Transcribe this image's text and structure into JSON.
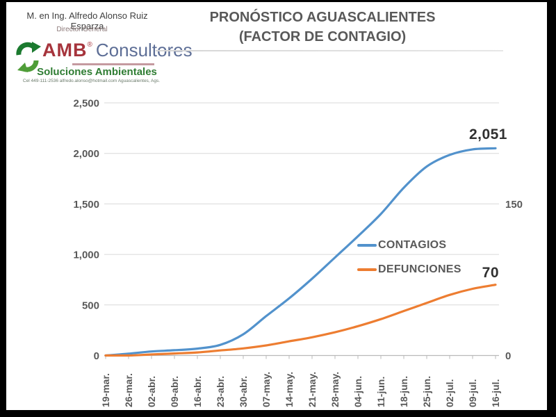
{
  "header": {
    "author_name": "M. en Ing. Alfredo Alonso Ruiz Esparza",
    "author_title": "Director General",
    "logo": {
      "brand": "AMB",
      "registered_mark": "®",
      "brand_suffix": "Consultores",
      "tagline": "Soluciones Ambientales",
      "contact": "Cel 449-111-2536    alfredo.alonso@hotmail.com    Aguascalientes, Ags.",
      "colors": {
        "brand": "#a6343c",
        "suffix": "#5d6e96",
        "tagline": "#2f7d33",
        "recycle_dark": "#1b7a2f",
        "recycle_light": "#4f9d38"
      }
    }
  },
  "title": {
    "line1": "PRONÓSTICO AGUASCALIENTES",
    "line2": "(FACTOR DE CONTAGIO)"
  },
  "chart_data": {
    "type": "line",
    "title": "PRONÓSTICO AGUASCALIENTES (FACTOR DE CONTAGIO)",
    "grid": true,
    "legend_position": "center-right",
    "categories": [
      "19-mar.",
      "26-mar.",
      "02-abr.",
      "09-abr.",
      "16-abr.",
      "23-abr.",
      "30-abr.",
      "07-may.",
      "14-may.",
      "21-may.",
      "28-may.",
      "04-jun.",
      "11-jun.",
      "18-jun.",
      "25-jun.",
      "02-jul.",
      "09-jul.",
      "16-jul."
    ],
    "series": [
      {
        "name": "CONTAGIOS",
        "axis": "left",
        "color": "#5292cc",
        "end_label": "2,051",
        "end_value": 2051,
        "values": [
          0,
          18,
          40,
          52,
          68,
          105,
          210,
          390,
          565,
          760,
          970,
          1180,
          1400,
          1660,
          1870,
          1985,
          2040,
          2051
        ]
      },
      {
        "name": "DEFUNCIONES",
        "axis": "right",
        "color": "#ed7d31",
        "end_label": "70",
        "end_value": 70,
        "values": [
          0,
          0,
          1,
          2,
          3,
          5,
          7,
          10,
          14,
          18,
          23,
          29,
          36,
          44,
          52,
          60,
          66,
          70
        ]
      }
    ],
    "left_axis": {
      "min": 0,
      "max": 2500,
      "ticks": [
        {
          "label": "0",
          "value": 0
        },
        {
          "label": "500",
          "value": 500
        },
        {
          "label": "1,000",
          "value": 1000
        },
        {
          "label": "1,500",
          "value": 1500
        },
        {
          "label": "2,000",
          "value": 2000
        },
        {
          "label": "2,500",
          "value": 2500
        }
      ]
    },
    "right_axis": {
      "min": 0,
      "max": 250,
      "visible_ticks": [
        {
          "label": "150",
          "value": 150
        },
        {
          "label": "0",
          "value": 0
        }
      ]
    }
  }
}
